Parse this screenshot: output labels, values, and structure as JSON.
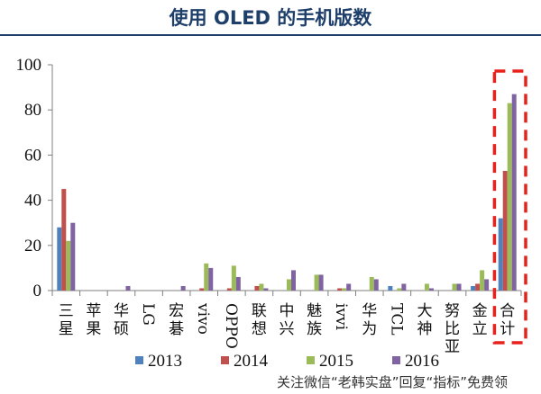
{
  "title": "使用 OLED 的手机版数",
  "watermark": "关注微信“老韩实盘”回复“指标”免费领",
  "chart_data": {
    "type": "bar",
    "title": "使用 OLED 的手机版数",
    "categories": [
      "三星",
      "苹果",
      "华硕",
      "LG",
      "宏碁",
      "vivo",
      "OPPO",
      "联想",
      "中兴",
      "魅族",
      "ivvi",
      "华为",
      "TCL",
      "大神",
      "努比亚",
      "金立",
      "合计"
    ],
    "series": [
      {
        "name": "2013",
        "color": "#4f81bd",
        "values": [
          28,
          0,
          0,
          0,
          0,
          0,
          0,
          0,
          0,
          0,
          0,
          0,
          2,
          0,
          0,
          2,
          32
        ]
      },
      {
        "name": "2014",
        "color": "#c0504d",
        "values": [
          45,
          0,
          0,
          0,
          0,
          1,
          1,
          2,
          0,
          0,
          1,
          0,
          0,
          0,
          0,
          3,
          53
        ]
      },
      {
        "name": "2015",
        "color": "#9bbb59",
        "values": [
          22,
          0,
          0,
          0,
          0,
          12,
          11,
          3,
          5,
          7,
          1,
          6,
          1,
          3,
          3,
          9,
          83
        ]
      },
      {
        "name": "2016",
        "color": "#8064a2",
        "values": [
          30,
          0,
          2,
          0,
          2,
          10,
          6,
          1,
          9,
          7,
          3,
          5,
          3,
          1,
          3,
          5,
          87
        ]
      }
    ],
    "ylim": [
      0,
      100
    ],
    "yticks": [
      0,
      20,
      40,
      60,
      80,
      100
    ],
    "legend": "bottom",
    "highlight": {
      "category": "合计",
      "style": "dashed-box",
      "color": "#e8211b"
    }
  }
}
